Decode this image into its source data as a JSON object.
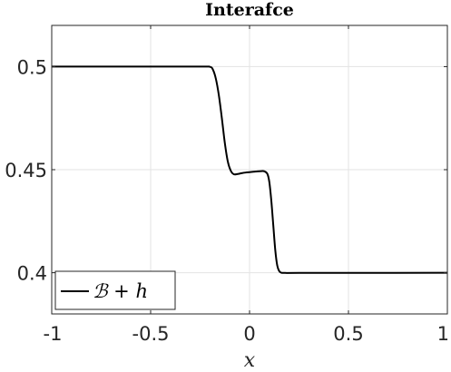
{
  "chart_data": {
    "type": "line",
    "title": "Interafce",
    "xlabel": "x",
    "ylabel": "",
    "xlim": [
      -1,
      1
    ],
    "ylim": [
      0.38,
      0.52
    ],
    "xticks": [
      -1,
      -0.5,
      0,
      0.5,
      1
    ],
    "xtick_labels": [
      "-1",
      "-0.5",
      "0",
      "0.5",
      "1"
    ],
    "yticks": [
      0.4,
      0.45,
      0.5
    ],
    "ytick_labels": [
      "0.4",
      "0.45",
      "0.5"
    ],
    "grid": true,
    "legend_position": "bottom-left",
    "series": [
      {
        "name": "ℬ + h",
        "color": "#000000",
        "x": [
          -1,
          -0.6,
          -0.25,
          -0.2,
          -0.185,
          -0.17,
          -0.155,
          -0.14,
          -0.125,
          -0.11,
          -0.095,
          -0.08,
          -0.06,
          -0.04,
          -0.02,
          0,
          0.02,
          0.04,
          0.06,
          0.075,
          0.09,
          0.1,
          0.11,
          0.12,
          0.13,
          0.14,
          0.15,
          0.16,
          0.18,
          0.25,
          0.5,
          1
        ],
        "y": [
          0.5,
          0.5,
          0.5,
          0.4999,
          0.4985,
          0.494,
          0.486,
          0.475,
          0.463,
          0.454,
          0.4495,
          0.4478,
          0.4479,
          0.4483,
          0.4486,
          0.4488,
          0.449,
          0.4492,
          0.4493,
          0.4492,
          0.448,
          0.444,
          0.435,
          0.423,
          0.411,
          0.4035,
          0.4008,
          0.4,
          0.3999,
          0.3999,
          0.3999,
          0.4
        ]
      }
    ]
  }
}
